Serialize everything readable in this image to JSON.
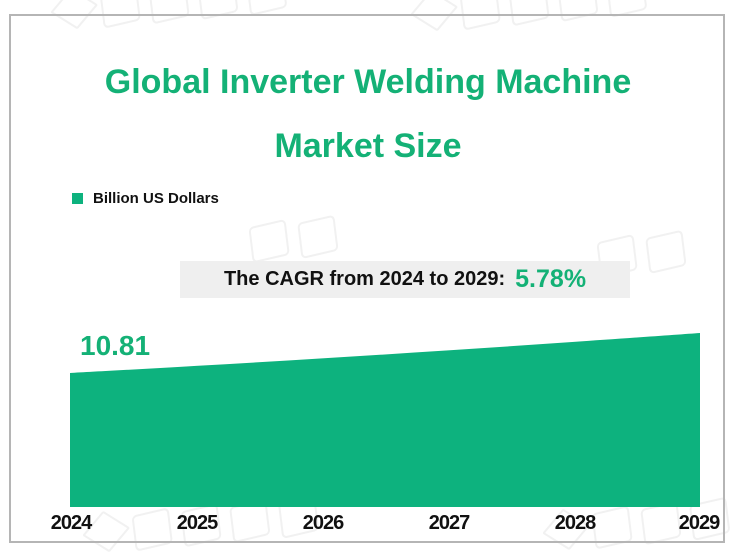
{
  "title": {
    "line1": "Global Inverter Welding Machine",
    "line2": "Market Size"
  },
  "legend": {
    "label": "Billion US Dollars"
  },
  "cagr": {
    "label": "The CAGR from 2024 to 2029:",
    "value": "5.78%"
  },
  "value_label_2024": "10.81",
  "chart_data": {
    "type": "area",
    "title": "Global Inverter Welding Machine Market Size",
    "categories": [
      "2024",
      "2025",
      "2026",
      "2027",
      "2028",
      "2029"
    ],
    "series": [
      {
        "name": "Billion US Dollars",
        "values": [
          10.81,
          11.43,
          12.09,
          12.79,
          13.53,
          14.31
        ]
      }
    ],
    "unit": "Billion US Dollars",
    "labeled_points": [
      {
        "category": "2024",
        "value": 10.81
      }
    ],
    "cagr_2024_2029": "5.78%",
    "notes": "Only the 2024 value (10.81) is labeled on the chart; 2025-2029 values estimated from the stated 5.78% CAGR. Y-axis hidden, no gridlines.",
    "legend_position": "top-left",
    "grid": false
  },
  "colors": {
    "accent_green": "#14b176",
    "area_green": "#0db27e",
    "banner_bg": "#efefef",
    "frame_gray": "#b5b5b5",
    "label_black": "#111111",
    "watermark_gray": "#f1f1f1"
  },
  "watermark": {
    "name": "beizhesi-consulting-watermark"
  }
}
